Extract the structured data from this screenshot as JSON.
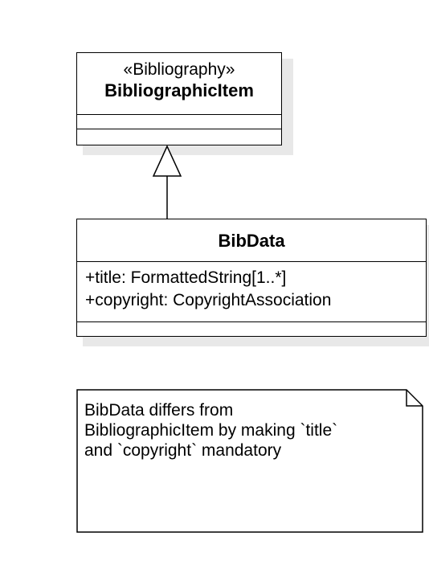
{
  "classes": {
    "bibliographic_item": {
      "stereotype": "«Bibliography»",
      "name": "BibliographicItem"
    },
    "bib_data": {
      "name": "BibData",
      "attributes": [
        "+title: FormattedString[1..*]",
        "+copyright: CopyrightAssociation"
      ]
    }
  },
  "note": {
    "lines": [
      "BibData differs from",
      "BibliographicItem by making `title`",
      "and `copyright` mandatory"
    ]
  }
}
